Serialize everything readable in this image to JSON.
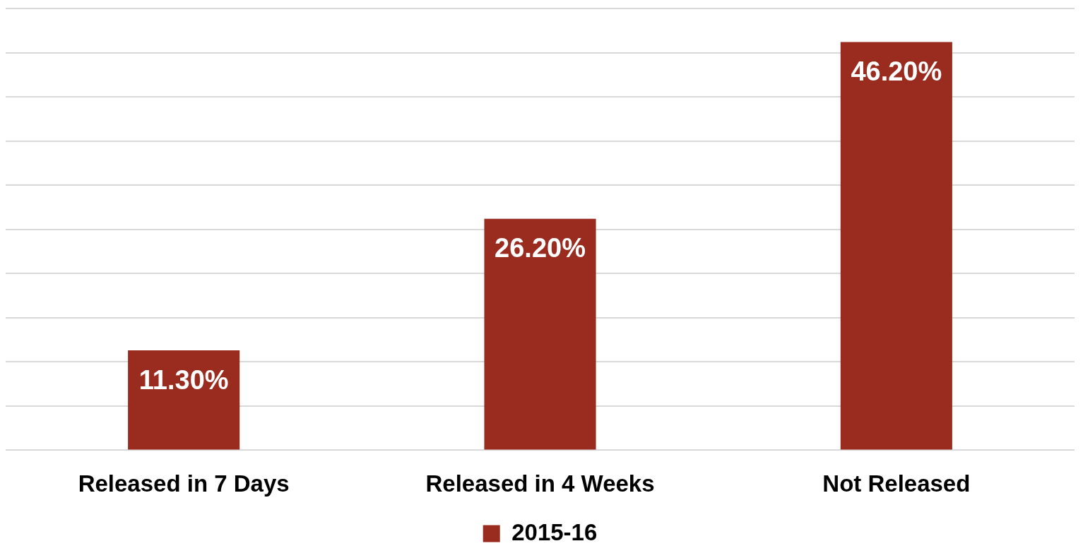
{
  "chart_data": {
    "type": "bar",
    "categories": [
      "Released in 7 Days",
      "Released in 4 Weeks",
      "Not Released"
    ],
    "series": [
      {
        "name": "2015-16",
        "color": "#9a2b1f",
        "values": [
          11.3,
          26.2,
          46.2
        ],
        "value_labels": [
          "11.30%",
          "26.20%",
          "46.20%"
        ]
      }
    ],
    "ylim": [
      0,
      50
    ],
    "yticks": [
      {
        "value": 0,
        "label": null
      },
      {
        "value": 5,
        "label": null
      },
      {
        "value": 10,
        "label": null
      },
      {
        "value": 15,
        "label": null
      },
      {
        "value": 20,
        "label": null
      },
      {
        "value": 25,
        "label": null
      },
      {
        "value": 30,
        "label": null
      },
      {
        "value": 35,
        "label": null
      },
      {
        "value": 40,
        "label": null
      },
      {
        "value": 45,
        "label": null
      },
      {
        "value": 50,
        "label": null
      }
    ],
    "grid": "y",
    "tick_labels": "x",
    "legend": "bottom"
  }
}
